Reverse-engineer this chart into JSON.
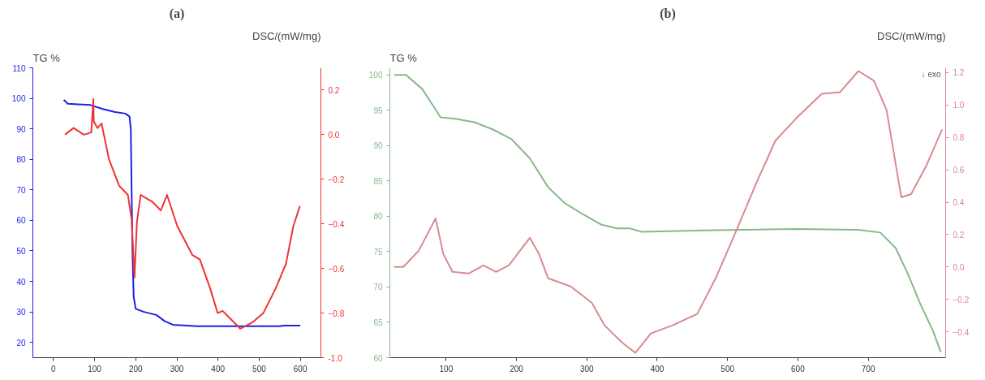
{
  "chart_data": [
    {
      "type": "line",
      "title": "(a)",
      "ylabel": "TG %",
      "y2label": "DSC/(mW/mg)",
      "grid": false,
      "xlim": [
        -50,
        650
      ],
      "xticks": [
        0,
        100,
        200,
        300,
        400,
        500,
        600
      ],
      "ylim": [
        15,
        110
      ],
      "yticks": [
        20,
        30,
        40,
        50,
        60,
        70,
        80,
        90,
        100,
        110
      ],
      "y2lim": [
        -1.0,
        0.3
      ],
      "y2ticks": [
        {
          "value": -1.0,
          "label": "-1.0"
        },
        -0.8,
        -0.6,
        -0.4,
        -0.2,
        {
          "value": 0,
          "label": "0.0"
        },
        0.2
      ],
      "series": [
        {
          "color": "#1f1fe6",
          "x": [
            25,
            35,
            60,
            90,
            120,
            150,
            175,
            185,
            188,
            190,
            192,
            195,
            200,
            220,
            250,
            270,
            290,
            350,
            450,
            550,
            560,
            600
          ],
          "values": [
            99.5,
            98.2,
            98,
            97.8,
            96.5,
            95.5,
            95,
            94,
            90,
            70,
            50,
            35,
            31,
            30,
            29,
            27,
            25.8,
            25.3,
            25.3,
            25.3,
            25.5,
            25.5
          ]
        },
        {
          "color": "#ee3333",
          "axis": "y2",
          "x": [
            28,
            49,
            74,
            92,
            97,
            98,
            107,
            117,
            135,
            160,
            181,
            190,
            197,
            203,
            212,
            240,
            261,
            276,
            301,
            338,
            356,
            381,
            399,
            411,
            427,
            454,
            485,
            510,
            540,
            565,
            583,
            599
          ],
          "values": [
            0.0,
            0.03,
            0.0,
            0.01,
            0.16,
            0.06,
            0.03,
            0.05,
            -0.11,
            -0.23,
            -0.27,
            -0.38,
            -0.64,
            -0.39,
            -0.27,
            -0.3,
            -0.34,
            -0.27,
            -0.41,
            -0.54,
            -0.56,
            -0.69,
            -0.8,
            -0.79,
            -0.82,
            -0.87,
            -0.84,
            -0.8,
            -0.69,
            -0.58,
            -0.41,
            -0.32
          ]
        }
      ]
    },
    {
      "type": "line",
      "title": "(b)",
      "ylabel": "TG %",
      "y2label": "DSC/(mW/mg)",
      "grid": false,
      "annotations": [
        "↓ exo"
      ],
      "xlim": [
        20,
        810
      ],
      "xticks": [
        100,
        200,
        300,
        400,
        500,
        600,
        700
      ],
      "ylim": [
        60,
        101
      ],
      "yticks": [
        60,
        65,
        70,
        75,
        80,
        85,
        90,
        95,
        100
      ],
      "y2lim": [
        -0.56,
        1.23
      ],
      "y2ticks": [
        -0.4,
        -0.2,
        {
          "value": 0,
          "label": "0.0"
        },
        0.2,
        0.4,
        0.6,
        0.8,
        {
          "value": 1.0,
          "label": "1.0"
        },
        1.2
      ],
      "series": [
        {
          "color": "#88b888",
          "x": [
            26,
            43,
            66,
            83,
            92,
            113,
            140,
            166,
            193,
            219,
            245,
            268,
            294,
            321,
            343,
            360,
            378,
            466,
            598,
            686,
            717,
            739,
            757,
            774,
            792,
            803
          ],
          "values": [
            100,
            100,
            98,
            95.4,
            94,
            93.8,
            93.3,
            92.3,
            90.9,
            88.2,
            84.1,
            81.9,
            80.3,
            78.8,
            78.3,
            78.3,
            77.8,
            78,
            78.2,
            78.1,
            77.7,
            75.5,
            71.7,
            67.6,
            63.8,
            60.8
          ]
        },
        {
          "color": "#d98a90",
          "axis": "y2",
          "x": [
            26,
            39,
            61,
            85,
            96,
            109,
            132,
            153,
            171,
            189,
            219,
            232,
            245,
            277,
            307,
            325,
            351,
            369,
            391,
            422,
            457,
            483,
            515,
            541,
            568,
            598,
            634,
            660,
            686,
            708,
            726,
            747,
            761,
            783,
            805
          ],
          "values": [
            0.0,
            0.0,
            0.1,
            0.3,
            0.08,
            -0.03,
            -0.04,
            0.01,
            -0.03,
            0.01,
            0.18,
            0.08,
            -0.07,
            -0.12,
            -0.22,
            -0.36,
            -0.47,
            -0.53,
            -0.41,
            -0.36,
            -0.29,
            -0.07,
            0.25,
            0.52,
            0.78,
            0.92,
            1.07,
            1.08,
            1.21,
            1.15,
            0.97,
            0.43,
            0.45,
            0.63,
            0.85
          ]
        }
      ]
    }
  ]
}
